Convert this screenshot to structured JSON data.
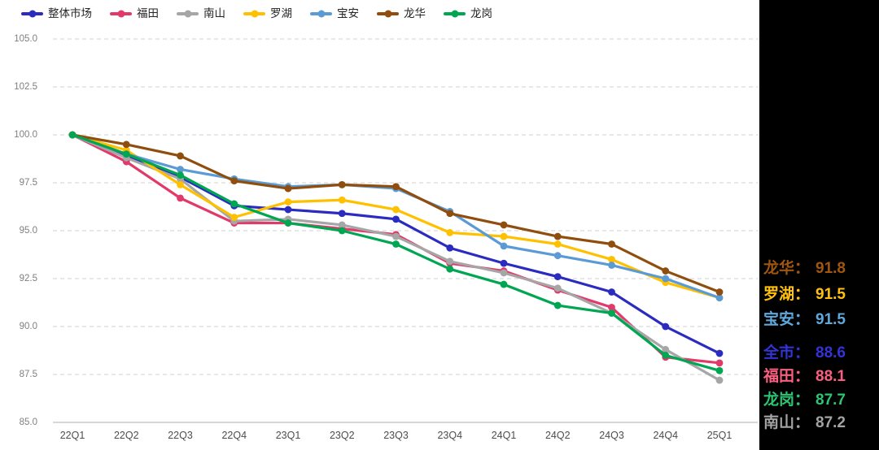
{
  "legend": {
    "items": [
      {
        "label": "整体市场",
        "color": "#2B2BC0"
      },
      {
        "label": "福田",
        "color": "#E2396B"
      },
      {
        "label": "南山",
        "color": "#A6A6A6"
      },
      {
        "label": "罗湖",
        "color": "#FFC000"
      },
      {
        "label": "宝安",
        "color": "#5B9BD5"
      },
      {
        "label": "龙华",
        "color": "#8F4E0E"
      },
      {
        "label": "龙岗",
        "color": "#00A651"
      }
    ]
  },
  "y_axis": {
    "tick_labels": [
      "105.0",
      "102.5",
      "100.0",
      "97.5",
      "95.0",
      "92.5",
      "90.0",
      "87.5",
      "85.0"
    ],
    "min": 85.0,
    "max": 105.0,
    "step": 2.5
  },
  "chart_data": {
    "type": "line",
    "title": "",
    "xlabel": "",
    "ylabel": "",
    "ylim": [
      85.0,
      105.0
    ],
    "grid": "horizontal-dashed",
    "legend_position": "top-left",
    "categories": [
      "22Q1",
      "22Q2",
      "22Q3",
      "22Q4",
      "23Q1",
      "23Q2",
      "23Q3",
      "23Q4",
      "24Q1",
      "24Q2",
      "24Q3",
      "24Q4",
      "25Q1"
    ],
    "series": [
      {
        "name": "整体市场",
        "color": "#2B2BC0",
        "values": [
          100.0,
          98.9,
          97.8,
          96.3,
          96.1,
          95.9,
          95.6,
          94.1,
          93.3,
          92.6,
          91.8,
          90.0,
          88.6
        ]
      },
      {
        "name": "福田",
        "color": "#E2396B",
        "values": [
          100.0,
          98.6,
          96.7,
          95.4,
          95.4,
          95.1,
          94.8,
          93.3,
          92.9,
          91.9,
          91.0,
          88.4,
          88.1
        ]
      },
      {
        "name": "南山",
        "color": "#A6A6A6",
        "values": [
          100.0,
          98.8,
          97.7,
          95.5,
          95.6,
          95.3,
          94.7,
          93.4,
          92.8,
          92.0,
          90.7,
          88.8,
          87.2
        ]
      },
      {
        "name": "罗湖",
        "color": "#FFC000",
        "values": [
          100.0,
          99.2,
          97.4,
          95.7,
          96.5,
          96.6,
          96.1,
          94.9,
          94.7,
          94.3,
          93.5,
          92.3,
          91.5
        ]
      },
      {
        "name": "宝安",
        "color": "#5B9BD5",
        "values": [
          100.0,
          99.0,
          98.2,
          97.7,
          97.3,
          97.4,
          97.2,
          96.0,
          94.2,
          93.7,
          93.2,
          92.5,
          91.5
        ]
      },
      {
        "name": "龙华",
        "color": "#8F4E0E",
        "values": [
          100.0,
          99.5,
          98.9,
          97.6,
          97.2,
          97.4,
          97.3,
          95.9,
          95.3,
          94.7,
          94.3,
          92.9,
          91.8
        ]
      },
      {
        "name": "龙岗",
        "color": "#00A651",
        "values": [
          100.0,
          99.0,
          97.9,
          96.4,
          95.4,
          95.0,
          94.3,
          93.0,
          92.2,
          91.1,
          90.7,
          88.5,
          87.7
        ]
      }
    ]
  },
  "side_panel": {
    "background": "#000000",
    "groups": [
      [
        {
          "label": "龙华",
          "separator": "：",
          "value": "91.8",
          "color": "#A0560F"
        },
        {
          "label": "罗湖",
          "separator": "：",
          "value": "91.5",
          "color": "#FFC10D"
        },
        {
          "label": "宝安",
          "separator": "：",
          "value": "91.5",
          "color": "#5FA8DC"
        }
      ],
      [
        {
          "label": "全市",
          "separator": "：",
          "value": "88.6",
          "color": "#3333D6"
        },
        {
          "label": "福田",
          "separator": "：",
          "value": "88.1",
          "color": "#FA5F7F"
        },
        {
          "label": "龙岗",
          "separator": "：",
          "value": "87.7",
          "color": "#2DC572"
        },
        {
          "label": "南山",
          "separator": "：",
          "value": "87.2",
          "color": "#A3A3A3"
        }
      ]
    ]
  }
}
